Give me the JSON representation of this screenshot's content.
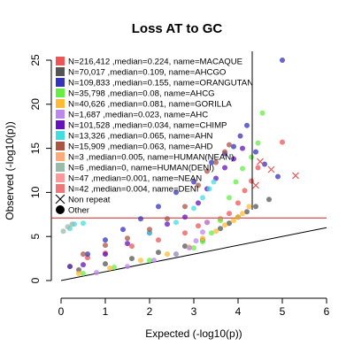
{
  "chart_data": {
    "type": "scatter",
    "title": "Loss AT to GC",
    "xlabel": "Expected (-log10(p))",
    "ylabel": "Observed (-log10(p))",
    "xlim": [
      0,
      6
    ],
    "ylim": [
      0,
      25
    ],
    "x_ticks": [
      "0",
      "1",
      "2",
      "3",
      "4",
      "5",
      "6"
    ],
    "y_ticks": [
      "0",
      "5",
      "10",
      "15",
      "20",
      "25"
    ],
    "grid": false,
    "legend_position": "top-left",
    "reference_line": {
      "type": "identity",
      "color": "#000000"
    },
    "threshold_line": {
      "y": 7.1,
      "color": "#cc2222"
    },
    "series": [
      {
        "name": "N=216,412 ,median=0.224, name=MACAQUE",
        "color": "#ee5555",
        "points": [
          [
            0.2,
            1.6
          ],
          [
            0.6,
            2.6
          ],
          [
            1.0,
            3.1
          ],
          [
            1.6,
            3.9
          ],
          [
            2.2,
            4.6
          ],
          [
            2.8,
            5.4
          ],
          [
            3.1,
            6.2
          ],
          [
            3.3,
            6.6
          ],
          [
            3.6,
            7.0
          ],
          [
            3.8,
            7.6
          ],
          [
            4.0,
            8.8
          ],
          [
            4.15,
            10.2
          ],
          [
            4.3,
            11.3
          ],
          [
            4.45,
            12.8
          ],
          [
            5.0,
            15.7
          ]
        ]
      },
      {
        "name": "N=70,017 ,median=0.109, name=AHCGO",
        "color": "#555555",
        "points": [
          [
            0.4,
            1.2
          ],
          [
            1.0,
            1.9
          ],
          [
            1.6,
            2.5
          ],
          [
            2.2,
            3.2
          ],
          [
            2.8,
            3.9
          ],
          [
            3.2,
            4.6
          ],
          [
            3.6,
            5.9
          ],
          [
            3.8,
            6.5
          ],
          [
            4.0,
            7.2
          ],
          [
            4.2,
            7.8
          ],
          [
            4.4,
            8.4
          ],
          [
            4.7,
            9.2
          ]
        ]
      },
      {
        "name": "N=109,833 ,median=0.155, name=ORANGUTAN",
        "color": "#3333bb",
        "points": [
          [
            0.2,
            1.6
          ],
          [
            0.6,
            3.0
          ],
          [
            1.0,
            4.6
          ],
          [
            1.4,
            5.8
          ],
          [
            1.8,
            7.0
          ],
          [
            2.2,
            8.4
          ],
          [
            2.6,
            10.0
          ],
          [
            3.0,
            11.2
          ],
          [
            3.4,
            13.4
          ],
          [
            3.7,
            14.4
          ],
          [
            3.9,
            15.2
          ],
          [
            4.05,
            16.4
          ],
          [
            4.2,
            17.6
          ],
          [
            4.4,
            14.6
          ],
          [
            4.6,
            13.2
          ],
          [
            4.9,
            11.8
          ],
          [
            5.0,
            25.0
          ]
        ]
      },
      {
        "name": "N=35,798 ,median=0.08, name=AHCG",
        "color": "#66ee44",
        "points": [
          [
            0.5,
            0.8
          ],
          [
            1.2,
            1.5
          ],
          [
            2.0,
            2.3
          ],
          [
            2.6,
            3.0
          ],
          [
            3.0,
            3.7
          ],
          [
            3.2,
            4.4
          ],
          [
            3.4,
            5.4
          ],
          [
            3.6,
            6.8
          ],
          [
            3.8,
            9.4
          ],
          [
            3.95,
            11.2
          ],
          [
            4.1,
            12.7
          ],
          [
            4.3,
            14.0
          ],
          [
            4.45,
            15.6
          ],
          [
            4.55,
            19.0
          ]
        ]
      },
      {
        "name": "N=40,626 ,median=0.081, name=GORILLA",
        "color": "#ffbb33",
        "points": [
          [
            0.4,
            0.8
          ],
          [
            1.1,
            1.4
          ],
          [
            1.8,
            2.3
          ],
          [
            2.4,
            3.0
          ],
          [
            2.9,
            3.8
          ],
          [
            3.2,
            4.8
          ],
          [
            3.5,
            5.6
          ],
          [
            3.7,
            6.3
          ],
          [
            3.9,
            6.8
          ],
          [
            4.0,
            7.2
          ],
          [
            4.1,
            7.6
          ],
          [
            4.25,
            8.4
          ]
        ]
      },
      {
        "name": "N=1,687 ,median=0.023, name=AHC",
        "color": "#bb88ee",
        "points": [
          [
            0.8,
            0.9
          ],
          [
            1.5,
            1.6
          ],
          [
            2.1,
            2.3
          ],
          [
            2.6,
            3.0
          ],
          [
            2.9,
            3.7
          ],
          [
            3.05,
            4.5
          ],
          [
            3.2,
            5.5
          ],
          [
            3.3,
            6.6
          ]
        ]
      },
      {
        "name": "N=101,528 ,median=0.034, name=CHIMP",
        "color": "#6611bb",
        "points": [
          [
            0.5,
            1.8
          ],
          [
            1.0,
            3.0
          ],
          [
            1.5,
            4.2
          ],
          [
            2.0,
            5.4
          ],
          [
            2.4,
            6.4
          ],
          [
            2.8,
            7.2
          ],
          [
            3.1,
            8.8
          ],
          [
            3.3,
            10.4
          ],
          [
            3.5,
            11.6
          ],
          [
            3.7,
            12.8
          ],
          [
            3.9,
            13.8
          ],
          [
            4.1,
            15.0
          ]
        ]
      },
      {
        "name": "N=13,326 ,median=0.065, name=AHN",
        "color": "#44dddd",
        "points": [
          [
            0.2,
            5.9
          ],
          [
            0.3,
            6.4
          ],
          [
            0.5,
            6.5
          ],
          [
            2.0,
            5.4
          ],
          [
            2.6,
            6.6
          ],
          [
            3.0,
            8.2
          ],
          [
            3.2,
            9.4
          ],
          [
            3.35,
            10.4
          ],
          [
            3.45,
            11.2
          ]
        ]
      },
      {
        "name": "N=15,909 ,median=0.063, name=AHD",
        "color": "#aa5544",
        "points": [
          [
            0.5,
            3.0
          ],
          [
            1.0,
            4.0
          ],
          [
            1.5,
            4.8
          ],
          [
            2.0,
            5.8
          ],
          [
            2.4,
            7.0
          ],
          [
            2.8,
            8.4
          ],
          [
            3.1,
            10.8
          ],
          [
            3.3,
            12.4
          ],
          [
            3.5,
            13.4
          ],
          [
            3.7,
            14.6
          ],
          [
            3.8,
            15.4
          ]
        ]
      },
      {
        "name": "N=3 ,median=0.005, name=HUMAN(NEAN)",
        "color": "#ffaa77",
        "points": []
      },
      {
        "name": "N=6 ,median=0, name=HUMAN(DENI)",
        "color": "#99bbaa",
        "points": [
          [
            0.05,
            5.6
          ],
          [
            0.15,
            6.1
          ],
          [
            0.25,
            6.4
          ]
        ]
      },
      {
        "name": "N=47 ,median=0.001, name=NEAN",
        "color": "#ff9999",
        "points": []
      },
      {
        "name": "N=42 ,median=0.004, name=DENI",
        "color": "#ee7777",
        "points": []
      }
    ],
    "legend_extra": [
      {
        "symbol": "x",
        "label": "Non repeat"
      },
      {
        "symbol": "filled-circle",
        "label": "Other"
      }
    ],
    "nonrepeat_points": [
      [
        5.3,
        11.9
      ],
      [
        4.5,
        13.5
      ],
      [
        4.75,
        12.6
      ],
      [
        4.4,
        10.8
      ]
    ]
  }
}
